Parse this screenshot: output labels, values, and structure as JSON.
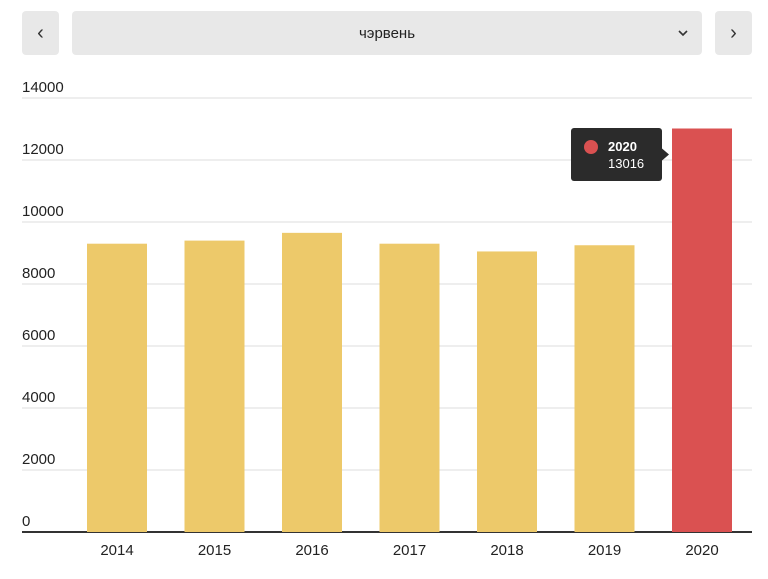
{
  "controls": {
    "prev_label": "‹",
    "next_label": "›",
    "month": "чэрвень"
  },
  "colors": {
    "bar": "#EDC96A",
    "highlight": "#DA5151",
    "grid": "#dcdcdc",
    "axis": "#333333",
    "tooltip_bg": "#2b2b2b"
  },
  "chart_data": {
    "type": "bar",
    "categories": [
      "2014",
      "2015",
      "2016",
      "2017",
      "2018",
      "2019",
      "2020"
    ],
    "values": [
      9300,
      9400,
      9650,
      9300,
      9050,
      9250,
      13016
    ],
    "highlight_index": 6,
    "ylim": [
      0,
      14000
    ],
    "yticks": [
      0,
      2000,
      4000,
      6000,
      8000,
      10000,
      12000,
      14000
    ],
    "grid": true,
    "tooltip": {
      "title": "2020",
      "value": "13016"
    }
  }
}
